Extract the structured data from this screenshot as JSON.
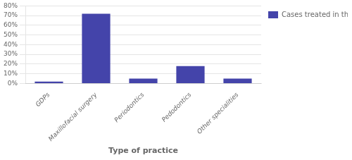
{
  "chart_data": {
    "type": "bar",
    "categories": [
      "GDPs",
      "Maxillofacial surgery",
      "Periodontics",
      "Pedodontics",
      "Other specialities"
    ],
    "series": [
      {
        "name": "Cases treated in the last year",
        "color": "#4444aa",
        "values": [
          2,
          72,
          5,
          18,
          5
        ]
      }
    ],
    "xlabel": "Type of practice",
    "ylim": [
      0,
      80
    ],
    "yticks": [
      {
        "value": 0,
        "label": "0%"
      },
      {
        "value": 10,
        "label": "10%"
      },
      {
        "value": 20,
        "label": "20%"
      },
      {
        "value": 30,
        "label": "30%"
      },
      {
        "value": 40,
        "label": "40%"
      },
      {
        "value": 50,
        "label": "50%"
      },
      {
        "value": 60,
        "label": "60%"
      },
      {
        "value": 70,
        "label": "70%"
      },
      {
        "value": 80,
        "label": "80%"
      }
    ],
    "grid": true,
    "legend": "right"
  }
}
